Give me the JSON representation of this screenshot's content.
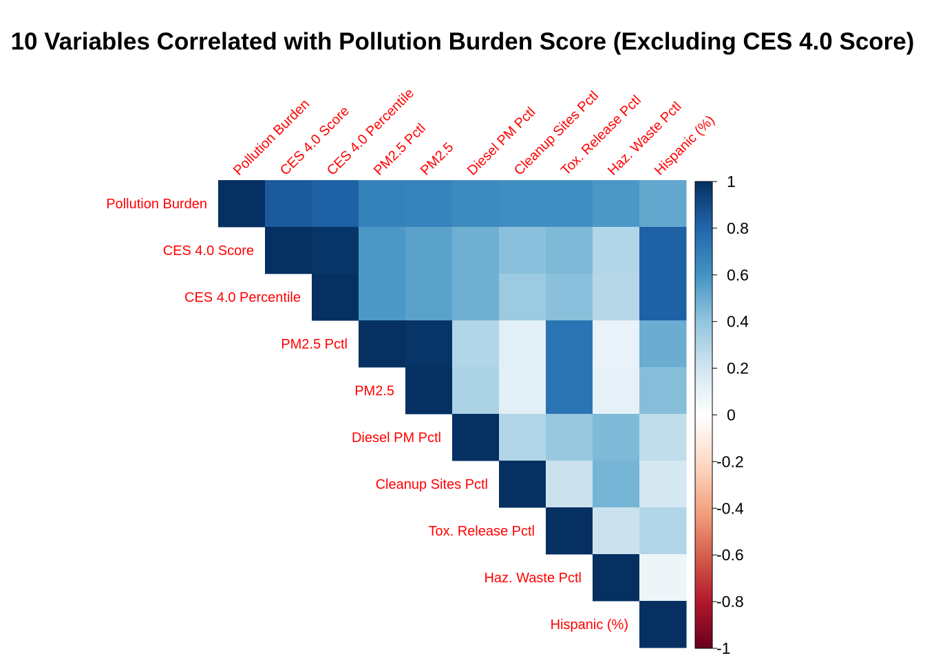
{
  "chart_data": {
    "type": "heatmap",
    "title": "10 Variables Correlated with Pollution Burden Score (Excluding CES 4.0 Score)",
    "variables": [
      "Pollution Burden",
      "CES 4.0 Score",
      "CES 4.0 Percentile",
      "PM2.5 Pctl",
      "PM2.5",
      "Diesel PM Pctl",
      "Cleanup Sites Pctl",
      "Tox. Release Pctl",
      "Haz. Waste Pctl",
      "Hispanic (%)"
    ],
    "layout": "upper-triangle",
    "matrix": [
      [
        1.0,
        0.84,
        0.82,
        0.68,
        0.67,
        0.64,
        0.62,
        0.62,
        0.58,
        0.52
      ],
      [
        null,
        1.0,
        0.98,
        0.58,
        0.54,
        0.49,
        0.42,
        0.45,
        0.3,
        0.82
      ],
      [
        null,
        null,
        1.0,
        0.58,
        0.54,
        0.49,
        0.37,
        0.42,
        0.29,
        0.82
      ],
      [
        null,
        null,
        null,
        1.0,
        0.98,
        0.3,
        0.12,
        0.74,
        0.1,
        0.5
      ],
      [
        null,
        null,
        null,
        null,
        1.0,
        0.32,
        0.12,
        0.74,
        0.11,
        0.43
      ],
      [
        null,
        null,
        null,
        null,
        null,
        1.0,
        0.3,
        0.38,
        0.45,
        0.25
      ],
      [
        null,
        null,
        null,
        null,
        null,
        null,
        1.0,
        0.22,
        0.47,
        0.18
      ],
      [
        null,
        null,
        null,
        null,
        null,
        null,
        null,
        1.0,
        0.22,
        0.3
      ],
      [
        null,
        null,
        null,
        null,
        null,
        null,
        null,
        null,
        1.0,
        0.08
      ],
      [
        null,
        null,
        null,
        null,
        null,
        null,
        null,
        null,
        null,
        1.0
      ]
    ],
    "colorbar": {
      "range": [
        -1,
        1
      ],
      "ticks": [
        1,
        0.8,
        0.6,
        0.4,
        0.2,
        0,
        -0.2,
        -0.4,
        -0.6,
        -0.8,
        -1
      ],
      "tick_labels": [
        "1",
        "0.8",
        "0.6",
        "0.4",
        "0.2",
        "0",
        "-0.2",
        "-0.4",
        "-0.6",
        "-0.8",
        "-1"
      ]
    },
    "colors": {
      "label_color": "#ff0000",
      "palette": [
        "#67001F",
        "#B2182B",
        "#D6604D",
        "#F4A582",
        "#FDDBC7",
        "#FFFFFF",
        "#D1E5F0",
        "#92C5DE",
        "#4393C3",
        "#2166AC",
        "#053061"
      ]
    }
  }
}
